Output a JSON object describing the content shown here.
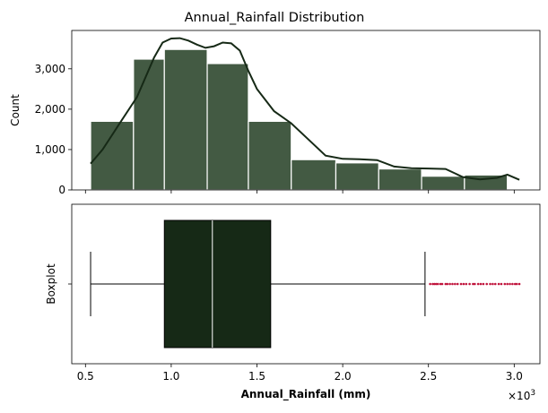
{
  "title": "Annual_Rainfall Distribution",
  "chart_data": [
    {
      "type": "bar",
      "subtype": "histogram",
      "title": "",
      "xlabel": "",
      "ylabel": "Count",
      "xlim": [
        420,
        3150
      ],
      "ylim": [
        0,
        3950
      ],
      "bin_edges": [
        530,
        780,
        960,
        1210,
        1450,
        1700,
        1960,
        2210,
        2460,
        2710,
        2960
      ],
      "counts": [
        1700,
        3240,
        3480,
        3130,
        1700,
        750,
        670,
        520,
        340,
        370
      ],
      "yticks": [
        0,
        1000,
        2000,
        3000
      ],
      "ytick_labels": [
        "0",
        "1,000",
        "2,000",
        "3,000"
      ],
      "kde": {
        "x": [
          530,
          600,
          700,
          800,
          900,
          950,
          1000,
          1050,
          1100,
          1150,
          1200,
          1250,
          1300,
          1350,
          1400,
          1450,
          1500,
          1600,
          1700,
          1800,
          1900,
          2000,
          2100,
          2200,
          2300,
          2400,
          2500,
          2600,
          2700,
          2800,
          2900,
          2960,
          3030
        ],
        "y": [
          650,
          1000,
          1650,
          2300,
          3280,
          3650,
          3750,
          3760,
          3700,
          3600,
          3520,
          3560,
          3650,
          3630,
          3450,
          2950,
          2500,
          1950,
          1650,
          1250,
          850,
          770,
          760,
          740,
          580,
          540,
          530,
          520,
          320,
          260,
          300,
          380,
          250
        ]
      },
      "bar_color": "#435a43",
      "line_color": "#162916"
    },
    {
      "type": "boxplot",
      "title": "",
      "xlabel": "Annual_Rainfall (mm)",
      "ylabel": "Boxplot",
      "xlim": [
        420,
        3150
      ],
      "x_scale_label": "×10",
      "x_scale_exponent": "3",
      "xticks": [
        500,
        1000,
        1500,
        2000,
        2500,
        3000
      ],
      "xtick_labels": [
        "0.5",
        "1.0",
        "1.5",
        "2.0",
        "2.5",
        "3.0"
      ],
      "whisker_low": 530,
      "q1": 960,
      "median": 1240,
      "q3": 1580,
      "whisker_high": 2480,
      "outliers": [
        2510,
        2525,
        2535,
        2545,
        2555,
        2570,
        2580,
        2600,
        2610,
        2625,
        2640,
        2655,
        2670,
        2690,
        2705,
        2720,
        2740,
        2760,
        2770,
        2790,
        2805,
        2820,
        2840,
        2860,
        2875,
        2890,
        2910,
        2925,
        2945,
        2960,
        2975,
        2990,
        3005,
        3015,
        3030
      ],
      "box_color": "#162916",
      "outlier_color": "#c0143c"
    }
  ]
}
